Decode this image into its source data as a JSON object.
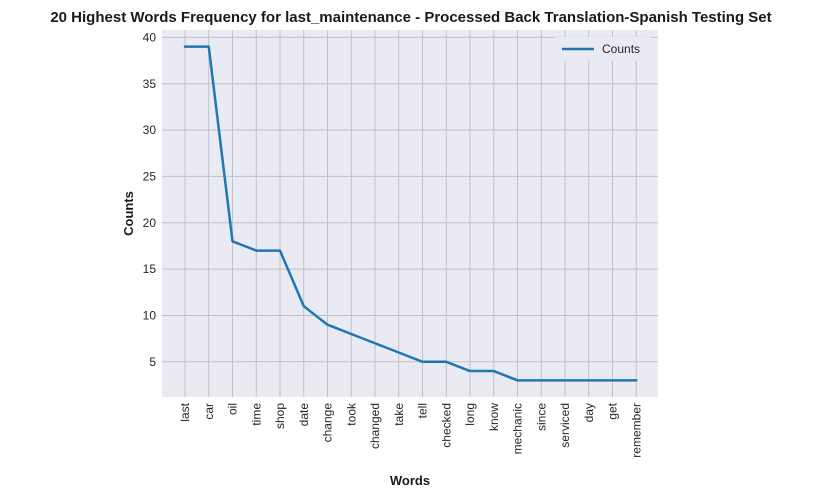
{
  "chart_data": {
    "type": "line",
    "title": "20 Highest Words Frequency for last_maintenance - Processed Back Translation-Spanish Testing Set",
    "xlabel": "Words",
    "ylabel": "Counts",
    "categories": [
      "last",
      "car",
      "oil",
      "time",
      "shop",
      "date",
      "change",
      "took",
      "changed",
      "take",
      "tell",
      "checked",
      "long",
      "know",
      "mechanic",
      "since",
      "serviced",
      "day",
      "get",
      "remember"
    ],
    "series": [
      {
        "name": "Counts",
        "values": [
          39,
          39,
          18,
          17,
          17,
          11,
          9,
          8,
          7,
          6,
          5,
          5,
          4,
          4,
          3,
          3,
          3,
          3,
          3,
          3
        ]
      }
    ],
    "ylim": [
      1.2,
      40.8
    ],
    "yticks": [
      5,
      10,
      15,
      20,
      25,
      30,
      35,
      40
    ],
    "grid": true,
    "legend_position": "top-right",
    "colors": {
      "line": "#1f77b4",
      "plot_background": "#eaeaf2",
      "grid": "#c0c0c8"
    }
  }
}
